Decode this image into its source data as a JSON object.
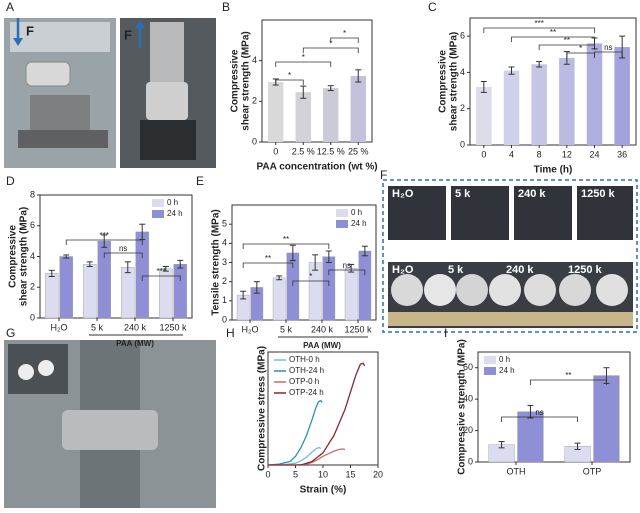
{
  "panel_labels": [
    "A",
    "B",
    "C",
    "D",
    "E",
    "F",
    "G",
    "H",
    "I"
  ],
  "photo_A": {
    "labels": [
      "F",
      "F"
    ]
  },
  "photo_F": {
    "top_labels": [
      "H₂O",
      "5 k",
      "240 k",
      "1250 k"
    ],
    "bottom_labels": [
      "H₂O",
      "5 k",
      "240 k",
      "1250 k"
    ]
  },
  "chart_data": [
    {
      "type": "bar",
      "ylabel": [
        "Compressive",
        "shear strength (MPa)"
      ],
      "xlabel": "PAA concentration (wt %)",
      "categories": [
        "0",
        "2.5 %",
        "12.5 %",
        "25 %"
      ],
      "values": [
        2.95,
        2.45,
        2.65,
        3.25
      ],
      "errors": [
        0.15,
        0.3,
        0.12,
        0.3
      ],
      "colors": [
        "#d9d9d9",
        "#d2d2d8",
        "#cbcbd8",
        "#c2c2dc"
      ],
      "ylim": [
        0,
        6
      ],
      "yticks": [
        0,
        2,
        4
      ],
      "annotations": [
        "*",
        "*",
        "*",
        "*"
      ]
    },
    {
      "type": "bar",
      "ylabel": [
        "Compressive",
        "shear strength (MPa)"
      ],
      "xlabel": "Time (h)",
      "categories": [
        "0",
        "4",
        "8",
        "12",
        "24",
        "36"
      ],
      "values": [
        3.2,
        4.1,
        4.45,
        4.8,
        5.6,
        5.4
      ],
      "errors": [
        0.3,
        0.2,
        0.15,
        0.35,
        0.3,
        0.6
      ],
      "colors": [
        "#dcdcea",
        "#d0d0ea",
        "#c5c5e6",
        "#babae2",
        "#aeaedf",
        "#a3a3db"
      ],
      "ylim": [
        0,
        7
      ],
      "yticks": [
        0,
        2,
        4,
        6
      ],
      "annotations": [
        "***",
        "**",
        "**",
        "*",
        "ns"
      ]
    },
    {
      "type": "grouped-bar",
      "ylabel": [
        "Compressive",
        "shear strength (MPa)"
      ],
      "xlabel": "PAA (MW)",
      "categories": [
        "H₂O",
        "5 k",
        "240 k",
        "1250 k"
      ],
      "series": [
        {
          "name": "0 h",
          "color": "#dcdcf0",
          "values": [
            2.9,
            3.5,
            3.3,
            3.2
          ],
          "errors": [
            0.2,
            0.15,
            0.35,
            0.15
          ]
        },
        {
          "name": "24 h",
          "color": "#8f8fd6",
          "values": [
            4.0,
            5.0,
            5.6,
            3.5
          ],
          "errors": [
            0.1,
            0.4,
            0.5,
            0.25
          ]
        }
      ],
      "ylim": [
        0,
        8
      ],
      "yticks": [
        0,
        2,
        4,
        6,
        8
      ],
      "legend": "top-right",
      "annotations": [
        "***",
        "ns",
        "***"
      ]
    },
    {
      "type": "grouped-bar",
      "ylabel": [
        "Tensile strength (MPa)"
      ],
      "xlabel": "PAA (MW)",
      "categories": [
        "H₂O",
        "5 k",
        "240 k",
        "1250 k"
      ],
      "series": [
        {
          "name": "0 h",
          "color": "#dcdcf0",
          "values": [
            1.3,
            2.2,
            3.0,
            2.7
          ],
          "errors": [
            0.2,
            0.1,
            0.4,
            0.2
          ]
        },
        {
          "name": "24 h",
          "color": "#8f8fd6",
          "values": [
            1.7,
            3.5,
            3.3,
            3.6
          ],
          "errors": [
            0.3,
            0.4,
            0.3,
            0.25
          ]
        }
      ],
      "ylim": [
        0,
        6
      ],
      "yticks": [
        0,
        1,
        2,
        3,
        4,
        5
      ],
      "legend": "top-right",
      "annotations": [
        "**",
        "**",
        "*",
        "ns"
      ]
    },
    {
      "type": "line",
      "ylabel": [
        "Compressive stress (MPa)"
      ],
      "xlabel": "Strain (%)",
      "series": [
        {
          "name": "OTH-0 h",
          "color": "#6fc0d6",
          "x": [
            0,
            3,
            5,
            6,
            7,
            8,
            8.8,
            9.3,
            9.6
          ],
          "values": [
            0,
            0.2,
            1,
            2.5,
            4.5,
            7.5,
            9.5,
            10,
            9.5
          ]
        },
        {
          "name": "OTH-24 h",
          "color": "#2c8fb3",
          "x": [
            0,
            2,
            4,
            5,
            6,
            7,
            8,
            8.7,
            9.2,
            9.6,
            9.8
          ],
          "values": [
            0,
            0.5,
            2,
            5,
            10,
            17,
            26,
            33,
            36.5,
            37,
            36
          ]
        },
        {
          "name": "OTP-0 h",
          "color": "#c0706b",
          "x": [
            0,
            5,
            7,
            8,
            9,
            10,
            11,
            12,
            13,
            13.6,
            14
          ],
          "values": [
            0,
            0,
            0.5,
            1.5,
            3,
            5,
            6.5,
            8,
            9,
            9.2,
            9
          ]
        },
        {
          "name": "OTP-24 h",
          "color": "#8b2a2a",
          "x": [
            0,
            6,
            8,
            10,
            12,
            14,
            15,
            16,
            16.8,
            17.3,
            17.6
          ],
          "values": [
            0,
            0,
            2,
            7,
            17,
            32,
            42,
            52,
            58,
            58.5,
            57
          ]
        }
      ],
      "xlim": [
        0,
        20
      ],
      "xticks": [
        0,
        5,
        10,
        15,
        20
      ],
      "ylim": [
        0,
        65
      ],
      "legend": "top-left"
    },
    {
      "type": "grouped-bar",
      "ylabel": [
        "Compressive strength (MPa)"
      ],
      "categories": [
        "OTH",
        "OTP"
      ],
      "series": [
        {
          "name": "0 h",
          "color": "#dcdcf0",
          "values": [
            11,
            10
          ],
          "errors": [
            2,
            2
          ]
        },
        {
          "name": "24 h",
          "color": "#8f8fd6",
          "values": [
            32,
            55
          ],
          "errors": [
            4,
            5
          ]
        }
      ],
      "ylim": [
        0,
        70
      ],
      "yticks": [
        0,
        20,
        40,
        60
      ],
      "legend": "top-left",
      "annotations": [
        "ns",
        "**"
      ]
    }
  ]
}
